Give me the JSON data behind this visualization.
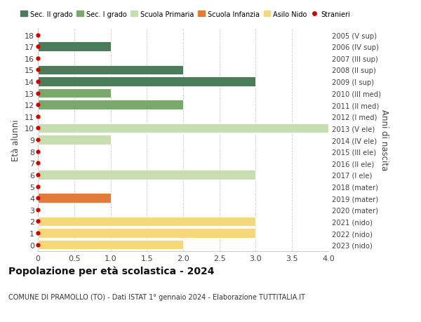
{
  "ages": [
    18,
    17,
    16,
    15,
    14,
    13,
    12,
    11,
    10,
    9,
    8,
    7,
    6,
    5,
    4,
    3,
    2,
    1,
    0
  ],
  "right_labels": [
    "2005 (V sup)",
    "2006 (IV sup)",
    "2007 (III sup)",
    "2008 (II sup)",
    "2009 (I sup)",
    "2010 (III med)",
    "2011 (II med)",
    "2012 (I med)",
    "2013 (V ele)",
    "2014 (IV ele)",
    "2015 (III ele)",
    "2016 (II ele)",
    "2017 (I ele)",
    "2018 (mater)",
    "2019 (mater)",
    "2020 (mater)",
    "2021 (nido)",
    "2022 (nido)",
    "2023 (nido)"
  ],
  "bars": [
    {
      "age": 18,
      "value": 0,
      "color": "#4a7c59"
    },
    {
      "age": 17,
      "value": 1.0,
      "color": "#4a7c59"
    },
    {
      "age": 16,
      "value": 0,
      "color": "#4a7c59"
    },
    {
      "age": 15,
      "value": 2.0,
      "color": "#4a7c59"
    },
    {
      "age": 14,
      "value": 3.0,
      "color": "#4a7c59"
    },
    {
      "age": 13,
      "value": 1.0,
      "color": "#7aaa6b"
    },
    {
      "age": 12,
      "value": 2.0,
      "color": "#7aaa6b"
    },
    {
      "age": 11,
      "value": 0,
      "color": "#7aaa6b"
    },
    {
      "age": 10,
      "value": 4.0,
      "color": "#c8ddb0"
    },
    {
      "age": 9,
      "value": 1.0,
      "color": "#c8ddb0"
    },
    {
      "age": 8,
      "value": 0,
      "color": "#c8ddb0"
    },
    {
      "age": 7,
      "value": 0,
      "color": "#c8ddb0"
    },
    {
      "age": 6,
      "value": 3.0,
      "color": "#c8ddb0"
    },
    {
      "age": 5,
      "value": 0,
      "color": "#e07b3a"
    },
    {
      "age": 4,
      "value": 1.0,
      "color": "#e07b3a"
    },
    {
      "age": 3,
      "value": 0,
      "color": "#e07b3a"
    },
    {
      "age": 2,
      "value": 3.0,
      "color": "#f5d87a"
    },
    {
      "age": 1,
      "value": 3.0,
      "color": "#f5d87a"
    },
    {
      "age": 0,
      "value": 2.0,
      "color": "#f5d87a"
    }
  ],
  "stranieri_dots": [
    18,
    17,
    16,
    15,
    14,
    13,
    12,
    11,
    10,
    9,
    8,
    7,
    6,
    5,
    4,
    3,
    2,
    1,
    0
  ],
  "dot_color": "#cc0000",
  "legend": [
    {
      "label": "Sec. II grado",
      "color": "#4a7c59",
      "type": "patch"
    },
    {
      "label": "Sec. I grado",
      "color": "#7aaa6b",
      "type": "patch"
    },
    {
      "label": "Scuola Primaria",
      "color": "#c8ddb0",
      "type": "patch"
    },
    {
      "label": "Scuola Infanzia",
      "color": "#e07b3a",
      "type": "patch"
    },
    {
      "label": "Asilo Nido",
      "color": "#f5d87a",
      "type": "patch"
    },
    {
      "label": "Stranieri",
      "color": "#cc0000",
      "type": "dot"
    }
  ],
  "ylabel_left": "Età alunni",
  "ylabel_right": "Anni di nascita",
  "title": "Popolazione per età scolastica - 2024",
  "subtitle": "COMUNE DI PRAMOLLO (TO) - Dati ISTAT 1° gennaio 2024 - Elaborazione TUTTITALIA.IT",
  "xlim": [
    0,
    4.0
  ],
  "ylim": [
    -0.55,
    18.55
  ],
  "background_color": "#ffffff",
  "grid_color": "#cccccc",
  "bar_height": 0.82
}
